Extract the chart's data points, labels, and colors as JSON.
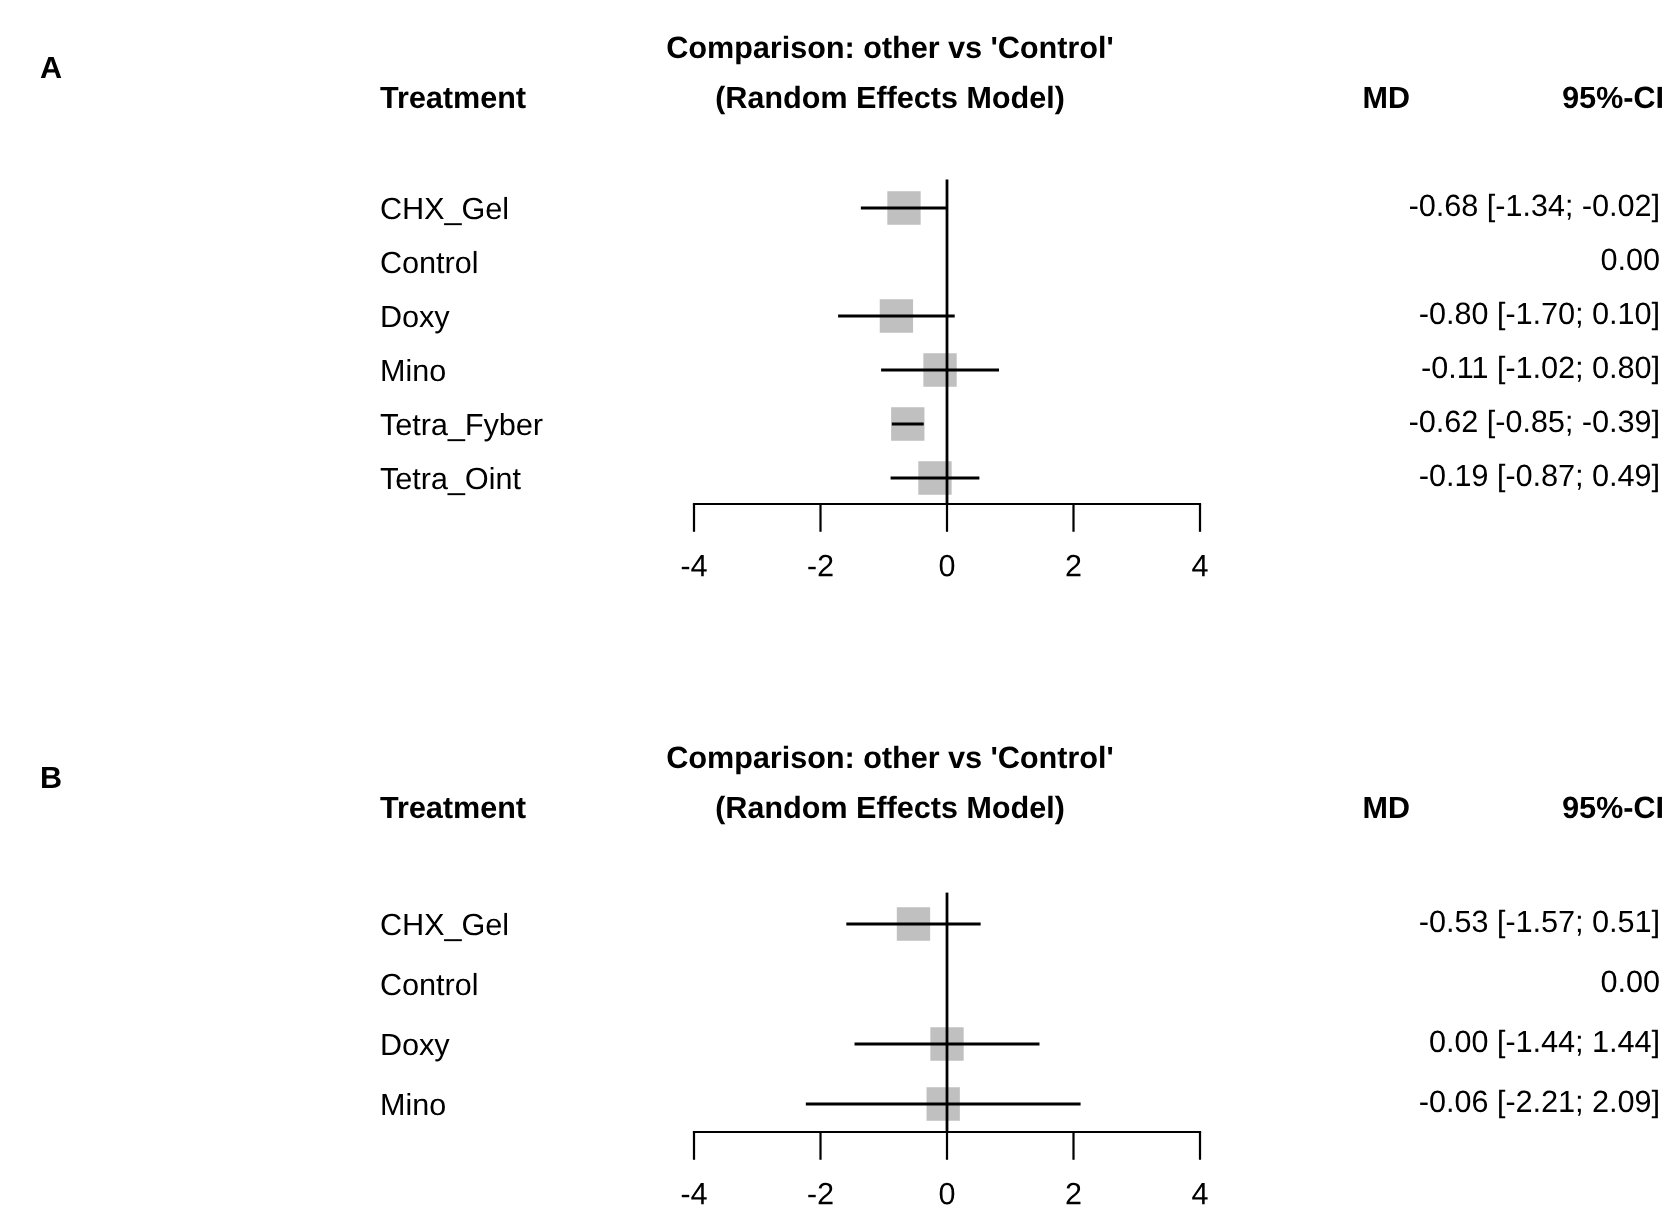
{
  "chart_data": [
    {
      "type": "scatter",
      "orientation": "horizontal",
      "title": "Comparison: other vs 'Control'",
      "subtitle": "(Random Effects Model)",
      "ylabel": "Treatment",
      "annotations": [
        "A",
        "MD",
        "95%-CI"
      ],
      "categories": [
        "CHX_Gel",
        "Control",
        "Doxy",
        "Mino",
        "Tetra_Fyber",
        "Tetra_Oint"
      ],
      "values": [
        -0.68,
        null,
        -0.8,
        -0.11,
        -0.62,
        -0.19
      ],
      "errors": [
        [
          -1.34,
          -0.02
        ],
        null,
        [
          -1.7,
          0.1
        ],
        [
          -1.02,
          0.8
        ],
        [
          -0.85,
          -0.39
        ],
        [
          -0.87,
          0.49
        ]
      ],
      "value_labels": [
        "-0.68 [-1.34; -0.02]",
        "0.00",
        "-0.80 [-1.70; 0.10]",
        "-0.11 [-1.02; 0.80]",
        "-0.62 [-0.85; -0.39]",
        "-0.19 [-0.87; 0.49]"
      ],
      "color": "#c0c0c0",
      "marker": "square",
      "xlim": [
        -4,
        4
      ],
      "xticks": [
        -4,
        -2,
        0,
        2,
        4
      ],
      "tick_labels": "x",
      "ref_lines": [
        {
          "axis": "x",
          "value": 0,
          "label": null
        }
      ]
    },
    {
      "type": "scatter",
      "orientation": "horizontal",
      "title": "Comparison: other vs 'Control'",
      "subtitle": "(Random Effects Model)",
      "ylabel": "Treatment",
      "annotations": [
        "B",
        "MD",
        "95%-CI"
      ],
      "categories": [
        "CHX_Gel",
        "Control",
        "Doxy",
        "Mino"
      ],
      "values": [
        -0.53,
        null,
        0.0,
        -0.06
      ],
      "errors": [
        [
          -1.57,
          0.51
        ],
        null,
        [
          -1.44,
          1.44
        ],
        [
          -2.21,
          2.09
        ]
      ],
      "value_labels": [
        "-0.53 [-1.57; 0.51]",
        "0.00",
        "0.00 [-1.44; 1.44]",
        "-0.06 [-2.21; 2.09]"
      ],
      "color": "#c0c0c0",
      "marker": "square",
      "xlim": [
        -4,
        4
      ],
      "xticks": [
        -4,
        -2,
        0,
        2,
        4
      ],
      "tick_labels": "x",
      "ref_lines": [
        {
          "axis": "x",
          "value": 0,
          "label": null
        }
      ]
    }
  ]
}
